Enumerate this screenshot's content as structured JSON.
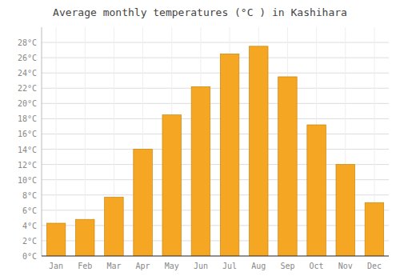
{
  "chart_data": {
    "type": "bar",
    "title": "Average monthly temperatures (°C ) in Kashihara",
    "categories": [
      "Jan",
      "Feb",
      "Mar",
      "Apr",
      "May",
      "Jun",
      "Jul",
      "Aug",
      "Sep",
      "Oct",
      "Nov",
      "Dec"
    ],
    "values": [
      4.3,
      4.8,
      7.7,
      14.0,
      18.5,
      22.2,
      26.5,
      27.5,
      23.5,
      17.2,
      12.0,
      7.0
    ],
    "color": "#F5A623",
    "ylim": [
      0,
      30
    ],
    "yticks": [
      {
        "value": 0,
        "label": "0°C"
      },
      {
        "value": 2,
        "label": "2°C"
      },
      {
        "value": 4,
        "label": "4°C"
      },
      {
        "value": 6,
        "label": "6°C"
      },
      {
        "value": 8,
        "label": "8°C"
      },
      {
        "value": 10,
        "label": "10°C"
      },
      {
        "value": 12,
        "label": "12°C"
      },
      {
        "value": 14,
        "label": "14°C"
      },
      {
        "value": 16,
        "label": "16°C"
      },
      {
        "value": 18,
        "label": "18°C"
      },
      {
        "value": 20,
        "label": "20°C"
      },
      {
        "value": 22,
        "label": "22°C"
      },
      {
        "value": 24,
        "label": "24°C"
      },
      {
        "value": 26,
        "label": "26°C"
      },
      {
        "value": 28,
        "label": "28°C"
      }
    ],
    "grid": true
  }
}
